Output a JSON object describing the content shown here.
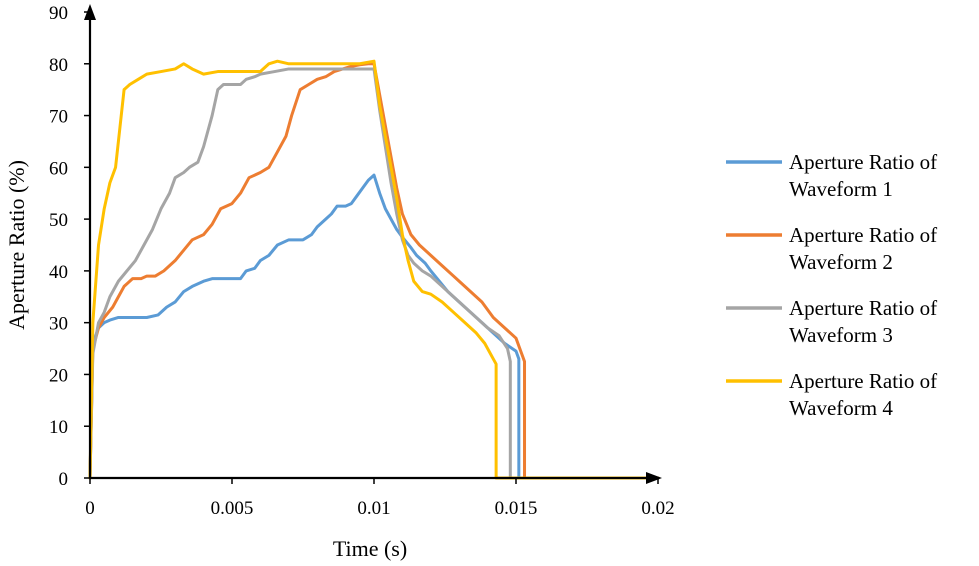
{
  "chart_data": {
    "type": "line",
    "xlabel": "Time (s)",
    "ylabel": "Aperture Ratio (%)",
    "xlim": [
      0,
      0.02
    ],
    "ylim": [
      0,
      90
    ],
    "x_ticks": [
      "0",
      "0.005",
      "0.01",
      "0.015",
      "0.02"
    ],
    "x_tick_values": [
      0,
      0.005,
      0.01,
      0.015,
      0.02
    ],
    "y_ticks": [
      "0",
      "10",
      "20",
      "30",
      "40",
      "50",
      "60",
      "70",
      "80",
      "90"
    ],
    "y_tick_values": [
      0,
      10,
      20,
      30,
      40,
      50,
      60,
      70,
      80,
      90
    ],
    "grid": false,
    "legend_position": "right",
    "series": [
      {
        "name": "Aperture Ratio of Waveform 1",
        "legend_lines": [
          "Aperture Ratio of",
          "Waveform 1"
        ],
        "color": "#5B9BD5",
        "points": [
          [
            0,
            0
          ],
          [
            0.0001,
            26
          ],
          [
            0.0003,
            29
          ],
          [
            0.0005,
            30
          ],
          [
            0.0007,
            30.5
          ],
          [
            0.001,
            31
          ],
          [
            0.0015,
            31
          ],
          [
            0.002,
            31
          ],
          [
            0.0024,
            31.5
          ],
          [
            0.0027,
            33
          ],
          [
            0.003,
            34
          ],
          [
            0.0033,
            36
          ],
          [
            0.0036,
            37
          ],
          [
            0.004,
            38
          ],
          [
            0.0043,
            38.5
          ],
          [
            0.005,
            38.5
          ],
          [
            0.0053,
            38.5
          ],
          [
            0.0055,
            40
          ],
          [
            0.0058,
            40.5
          ],
          [
            0.006,
            42
          ],
          [
            0.0063,
            43
          ],
          [
            0.0066,
            45
          ],
          [
            0.007,
            46
          ],
          [
            0.0073,
            46
          ],
          [
            0.0075,
            46
          ],
          [
            0.0078,
            47
          ],
          [
            0.008,
            48.5
          ],
          [
            0.0083,
            50
          ],
          [
            0.0085,
            51
          ],
          [
            0.0087,
            52.5
          ],
          [
            0.009,
            52.5
          ],
          [
            0.0092,
            53
          ],
          [
            0.0094,
            54.5
          ],
          [
            0.0096,
            56
          ],
          [
            0.0098,
            57.5
          ],
          [
            0.01,
            58.5
          ],
          [
            0.0102,
            55
          ],
          [
            0.0104,
            52
          ],
          [
            0.0106,
            50
          ],
          [
            0.0108,
            48
          ],
          [
            0.011,
            46.5
          ],
          [
            0.0113,
            44.5
          ],
          [
            0.0115,
            43
          ],
          [
            0.0118,
            41.5
          ],
          [
            0.012,
            40
          ],
          [
            0.0123,
            38
          ],
          [
            0.0126,
            36
          ],
          [
            0.013,
            34
          ],
          [
            0.0134,
            32
          ],
          [
            0.0138,
            30
          ],
          [
            0.0142,
            28
          ],
          [
            0.0146,
            26
          ],
          [
            0.015,
            24.5
          ],
          [
            0.0151,
            23
          ],
          [
            0.0151,
            0
          ],
          [
            0.02,
            0
          ]
        ]
      },
      {
        "name": "Aperture Ratio of Waveform 2",
        "legend_lines": [
          "Aperture Ratio of",
          "Waveform 2"
        ],
        "color": "#ED7D31",
        "points": [
          [
            0,
            0
          ],
          [
            0.0001,
            25
          ],
          [
            0.0003,
            29
          ],
          [
            0.0005,
            31
          ],
          [
            0.0008,
            33
          ],
          [
            0.001,
            35
          ],
          [
            0.0012,
            37
          ],
          [
            0.0015,
            38.5
          ],
          [
            0.0018,
            38.5
          ],
          [
            0.002,
            39
          ],
          [
            0.0023,
            39
          ],
          [
            0.0026,
            40
          ],
          [
            0.003,
            42
          ],
          [
            0.0033,
            44
          ],
          [
            0.0036,
            46
          ],
          [
            0.004,
            47
          ],
          [
            0.0043,
            49
          ],
          [
            0.0046,
            52
          ],
          [
            0.005,
            53
          ],
          [
            0.0053,
            55
          ],
          [
            0.0056,
            58
          ],
          [
            0.006,
            59
          ],
          [
            0.0063,
            60
          ],
          [
            0.0066,
            63
          ],
          [
            0.0069,
            66
          ],
          [
            0.0071,
            70
          ],
          [
            0.0074,
            75
          ],
          [
            0.0077,
            76
          ],
          [
            0.008,
            77
          ],
          [
            0.0083,
            77.5
          ],
          [
            0.0086,
            78.5
          ],
          [
            0.0089,
            79
          ],
          [
            0.0092,
            79.5
          ],
          [
            0.0095,
            79.8
          ],
          [
            0.0098,
            80
          ],
          [
            0.01,
            80
          ],
          [
            0.0102,
            74
          ],
          [
            0.0104,
            68
          ],
          [
            0.0106,
            62
          ],
          [
            0.0108,
            56
          ],
          [
            0.011,
            51
          ],
          [
            0.0113,
            47
          ],
          [
            0.0116,
            45
          ],
          [
            0.012,
            43
          ],
          [
            0.0124,
            41
          ],
          [
            0.0128,
            39
          ],
          [
            0.013,
            38
          ],
          [
            0.0134,
            36
          ],
          [
            0.0138,
            34
          ],
          [
            0.0142,
            31
          ],
          [
            0.0146,
            29
          ],
          [
            0.015,
            27
          ],
          [
            0.0152,
            24
          ],
          [
            0.0153,
            22.5
          ],
          [
            0.0153,
            0
          ],
          [
            0.02,
            0
          ]
        ]
      },
      {
        "name": "Aperture Ratio of Waveform 3",
        "legend_lines": [
          "Aperture Ratio of",
          "Waveform 3"
        ],
        "color": "#A5A5A5",
        "points": [
          [
            0,
            0
          ],
          [
            0.0001,
            24
          ],
          [
            0.0003,
            30
          ],
          [
            0.0005,
            32
          ],
          [
            0.0007,
            35
          ],
          [
            0.001,
            38
          ],
          [
            0.0013,
            40
          ],
          [
            0.0016,
            42
          ],
          [
            0.0019,
            45
          ],
          [
            0.0022,
            48
          ],
          [
            0.0025,
            52
          ],
          [
            0.0028,
            55
          ],
          [
            0.003,
            58
          ],
          [
            0.0033,
            59
          ],
          [
            0.0035,
            60
          ],
          [
            0.0038,
            61
          ],
          [
            0.004,
            64
          ],
          [
            0.0043,
            70
          ],
          [
            0.0045,
            75
          ],
          [
            0.0047,
            76
          ],
          [
            0.005,
            76
          ],
          [
            0.0053,
            76
          ],
          [
            0.0055,
            77
          ],
          [
            0.0058,
            77.5
          ],
          [
            0.006,
            78
          ],
          [
            0.0065,
            78.5
          ],
          [
            0.007,
            79
          ],
          [
            0.0075,
            79
          ],
          [
            0.008,
            79
          ],
          [
            0.0085,
            79
          ],
          [
            0.009,
            79
          ],
          [
            0.0095,
            79
          ],
          [
            0.01,
            79
          ],
          [
            0.0102,
            71
          ],
          [
            0.0104,
            64
          ],
          [
            0.0106,
            57
          ],
          [
            0.0108,
            51
          ],
          [
            0.011,
            46
          ],
          [
            0.0112,
            43
          ],
          [
            0.0114,
            41.5
          ],
          [
            0.0117,
            40
          ],
          [
            0.012,
            39
          ],
          [
            0.0124,
            37
          ],
          [
            0.0128,
            35
          ],
          [
            0.0132,
            33
          ],
          [
            0.0136,
            31
          ],
          [
            0.014,
            29
          ],
          [
            0.0144,
            27.5
          ],
          [
            0.0147,
            25
          ],
          [
            0.0148,
            22.5
          ],
          [
            0.0148,
            0
          ],
          [
            0.02,
            0
          ]
        ]
      },
      {
        "name": "Aperture Ratio of Waveform 4",
        "legend_lines": [
          "Aperture Ratio of",
          "Waveform 4"
        ],
        "color": "#FFC000",
        "points": [
          [
            0,
            0
          ],
          [
            0.0001,
            30
          ],
          [
            0.0003,
            45
          ],
          [
            0.0005,
            52
          ],
          [
            0.0007,
            57
          ],
          [
            0.0009,
            60
          ],
          [
            0.0011,
            70
          ],
          [
            0.0012,
            75
          ],
          [
            0.0014,
            76
          ],
          [
            0.0017,
            77
          ],
          [
            0.002,
            78
          ],
          [
            0.0025,
            78.5
          ],
          [
            0.003,
            79
          ],
          [
            0.0033,
            80
          ],
          [
            0.0036,
            79
          ],
          [
            0.004,
            78
          ],
          [
            0.0045,
            78.5
          ],
          [
            0.005,
            78.5
          ],
          [
            0.0055,
            78.5
          ],
          [
            0.006,
            78.5
          ],
          [
            0.0063,
            80
          ],
          [
            0.0066,
            80.5
          ],
          [
            0.007,
            80
          ],
          [
            0.0075,
            80
          ],
          [
            0.008,
            80
          ],
          [
            0.0085,
            80
          ],
          [
            0.009,
            80
          ],
          [
            0.0095,
            80
          ],
          [
            0.01,
            80.5
          ],
          [
            0.0102,
            72
          ],
          [
            0.0104,
            66
          ],
          [
            0.0106,
            60
          ],
          [
            0.0108,
            54
          ],
          [
            0.011,
            47
          ],
          [
            0.0112,
            42
          ],
          [
            0.0114,
            38
          ],
          [
            0.0117,
            36
          ],
          [
            0.012,
            35.5
          ],
          [
            0.0124,
            34
          ],
          [
            0.0128,
            32
          ],
          [
            0.0132,
            30
          ],
          [
            0.0136,
            28
          ],
          [
            0.0139,
            26
          ],
          [
            0.0142,
            23
          ],
          [
            0.0143,
            22
          ],
          [
            0.0143,
            0
          ],
          [
            0.02,
            0
          ]
        ]
      }
    ]
  }
}
